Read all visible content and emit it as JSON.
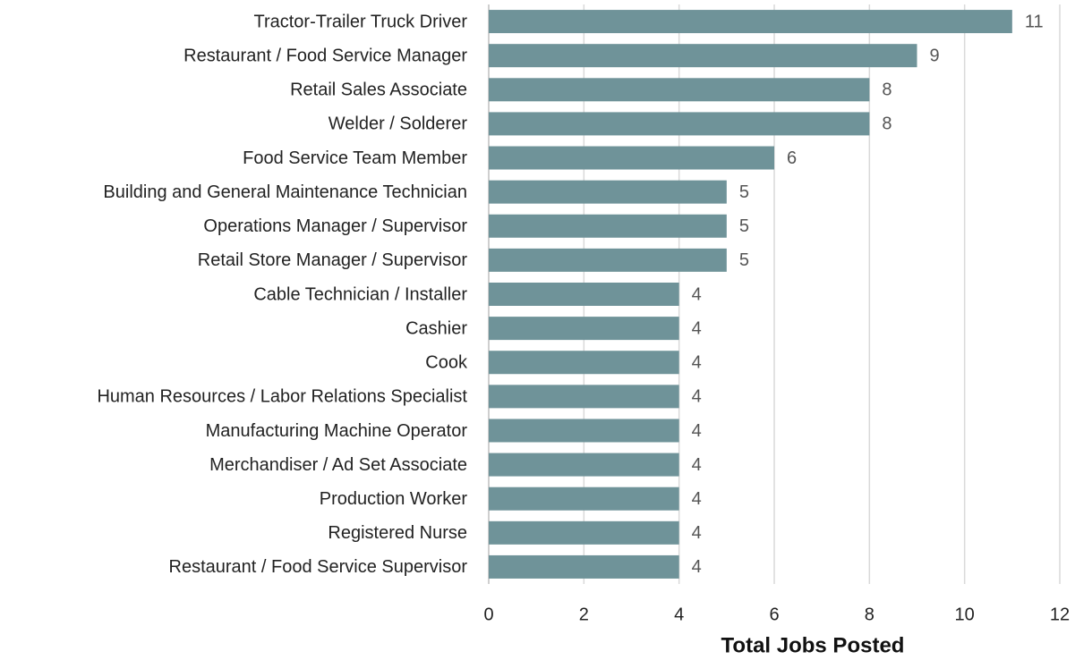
{
  "chart_data": {
    "type": "bar",
    "orientation": "horizontal",
    "categories": [
      "Tractor-Trailer Truck Driver",
      "Restaurant / Food Service Manager",
      "Retail Sales Associate",
      "Welder / Solderer",
      "Food Service Team Member",
      "Building and General Maintenance Technician",
      "Operations Manager / Supervisor",
      "Retail Store Manager / Supervisor",
      "Cable Technician / Installer",
      "Cashier",
      "Cook",
      "Human Resources / Labor Relations Specialist",
      "Manufacturing Machine Operator",
      "Merchandiser / Ad Set Associate",
      "Production Worker",
      "Registered Nurse",
      "Restaurant / Food Service Supervisor"
    ],
    "values": [
      11,
      9,
      8,
      8,
      6,
      5,
      5,
      5,
      4,
      4,
      4,
      4,
      4,
      4,
      4,
      4,
      4
    ],
    "color": "#6f9399",
    "x_label": "Total Jobs Posted",
    "xlim": [
      0,
      12
    ],
    "xticks": [
      0,
      2,
      4,
      6,
      8,
      10,
      12
    ],
    "grid": true
  }
}
